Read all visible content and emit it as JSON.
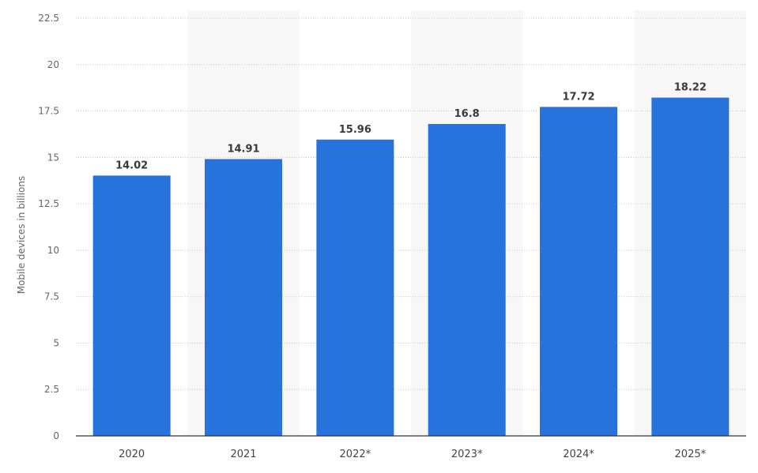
{
  "chart_data": {
    "type": "bar",
    "title": "",
    "xlabel": "",
    "ylabel": "Mobile devices in billions",
    "categories": [
      "2020",
      "2021",
      "2022*",
      "2023*",
      "2024*",
      "2025*"
    ],
    "values": [
      14.02,
      14.91,
      15.96,
      16.8,
      17.72,
      18.22
    ],
    "data_labels": [
      "14.02",
      "14.91",
      "15.96",
      "16.8",
      "17.72",
      "18.22"
    ],
    "yticks": [
      "0",
      "2.5",
      "5",
      "7.5",
      "10",
      "12.5",
      "15",
      "17.5",
      "20",
      "22.5"
    ],
    "ylim": [
      0,
      22.5
    ],
    "grid": true,
    "legend": "none",
    "colors": {
      "bar": "#2872dc",
      "band": "#f7f7f7",
      "grid": "#c8c8c8",
      "baseline": "#333333"
    }
  }
}
